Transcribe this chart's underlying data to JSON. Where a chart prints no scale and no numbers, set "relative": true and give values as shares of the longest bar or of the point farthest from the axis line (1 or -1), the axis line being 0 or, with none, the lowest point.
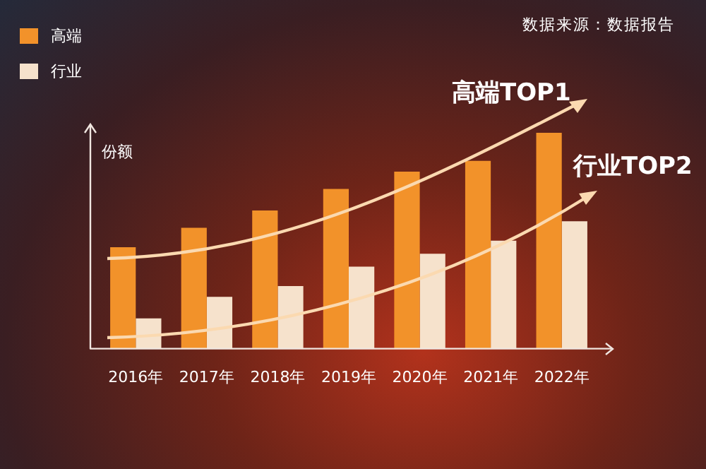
{
  "chart_data": {
    "type": "bar",
    "relative": true,
    "ylabel": "份额",
    "legend": "top left",
    "categories": [
      "2016年",
      "2017年",
      "2018年",
      "2019年",
      "2020年",
      "2021年",
      "2022年"
    ],
    "series": [
      {
        "name": "高端",
        "color": "#f2922a",
        "values": [
          0.47,
          0.56,
          0.64,
          0.74,
          0.82,
          0.87,
          1
        ]
      },
      {
        "name": "行业",
        "color": "#f6e2cc",
        "values": [
          0.14,
          0.24,
          0.29,
          0.38,
          0.44,
          0.5,
          0.59
        ]
      }
    ],
    "annotations": [
      "数据来源：数据报告",
      "高端TOP1",
      "行业TOP2"
    ]
  }
}
